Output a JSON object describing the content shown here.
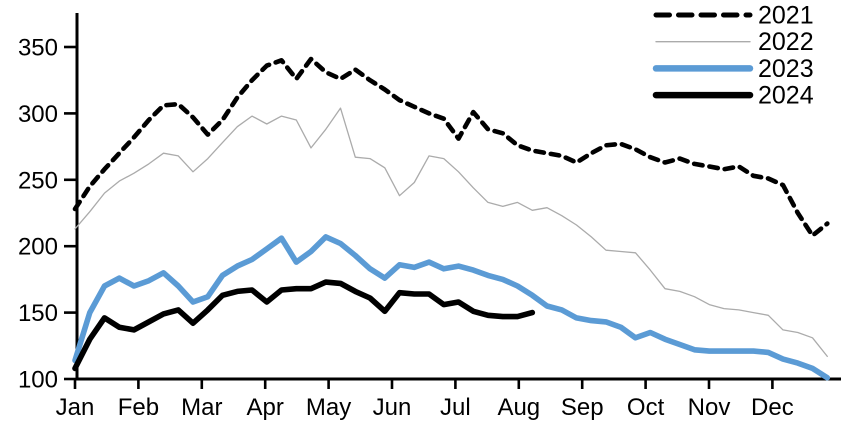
{
  "chart_data": {
    "type": "line",
    "title": "",
    "x_axis": {
      "unit": "week-of-year",
      "range_weeks": [
        1,
        52
      ],
      "tick_labels": [
        "Jan",
        "Feb",
        "Mar",
        "Apr",
        "May",
        "Jun",
        "Jul",
        "Aug",
        "Sep",
        "Oct",
        "Nov",
        "Dec"
      ]
    },
    "y_axis": {
      "ticks": [
        100,
        150,
        200,
        250,
        300,
        350
      ],
      "range": [
        100,
        375
      ]
    },
    "grid": false,
    "legend": {
      "position": "top-right",
      "entries": [
        "2021",
        "2022",
        "2023",
        "2024"
      ]
    },
    "series": [
      {
        "name": "2021",
        "style": "dashed",
        "color": "#000000",
        "width": 4.6,
        "values": [
          228,
          245,
          258,
          270,
          282,
          295,
          306,
          307,
          297,
          284,
          295,
          312,
          325,
          336,
          340,
          326,
          341,
          331,
          326,
          333,
          325,
          318,
          310,
          305,
          300,
          296,
          281,
          301,
          288,
          285,
          276,
          272,
          270,
          268,
          263,
          270,
          276,
          277,
          273,
          267,
          263,
          266,
          262,
          260,
          258,
          260,
          253,
          251,
          246,
          225,
          208,
          217
        ]
      },
      {
        "name": "2022",
        "style": "solid-thin",
        "color": "#ABABAB",
        "width": 1.3,
        "values": [
          213,
          226,
          240,
          249,
          255,
          262,
          270,
          268,
          256,
          266,
          278,
          290,
          298,
          292,
          298,
          295,
          274,
          288,
          304,
          267,
          266,
          259,
          238,
          248,
          268,
          266,
          256,
          244,
          233,
          230,
          233,
          227,
          229,
          223,
          216,
          207,
          197,
          196,
          195,
          182,
          168,
          166,
          162,
          156,
          153,
          152,
          150,
          148,
          137,
          135,
          131,
          117
        ]
      },
      {
        "name": "2023",
        "style": "solid-thick",
        "color": "#5B9BD5",
        "width": 5.6,
        "values": [
          114,
          150,
          170,
          176,
          170,
          174,
          180,
          170,
          158,
          162,
          178,
          185,
          190,
          198,
          206,
          188,
          196,
          207,
          202,
          193,
          183,
          176,
          186,
          184,
          188,
          183,
          185,
          182,
          178,
          175,
          170,
          163,
          155,
          152,
          146,
          144,
          143,
          139,
          131,
          135,
          130,
          126,
          122,
          121,
          121,
          121,
          121,
          120,
          115,
          112,
          108,
          101
        ]
      },
      {
        "name": "2024",
        "style": "solid-thick",
        "color": "#000000",
        "width": 5.6,
        "values": [
          108,
          130,
          146,
          139,
          137,
          143,
          149,
          152,
          142,
          152,
          163,
          166,
          167,
          158,
          167,
          168,
          168,
          173,
          172,
          166,
          161,
          151,
          165,
          164,
          164,
          156,
          158,
          151,
          148,
          147,
          147,
          150
        ]
      }
    ]
  },
  "colors": {
    "background": "#FFFFFF",
    "axis": "#000000",
    "text": "#000000",
    "accent_blue": "#5B9BD5",
    "thin_gray": "#ABABAB"
  }
}
